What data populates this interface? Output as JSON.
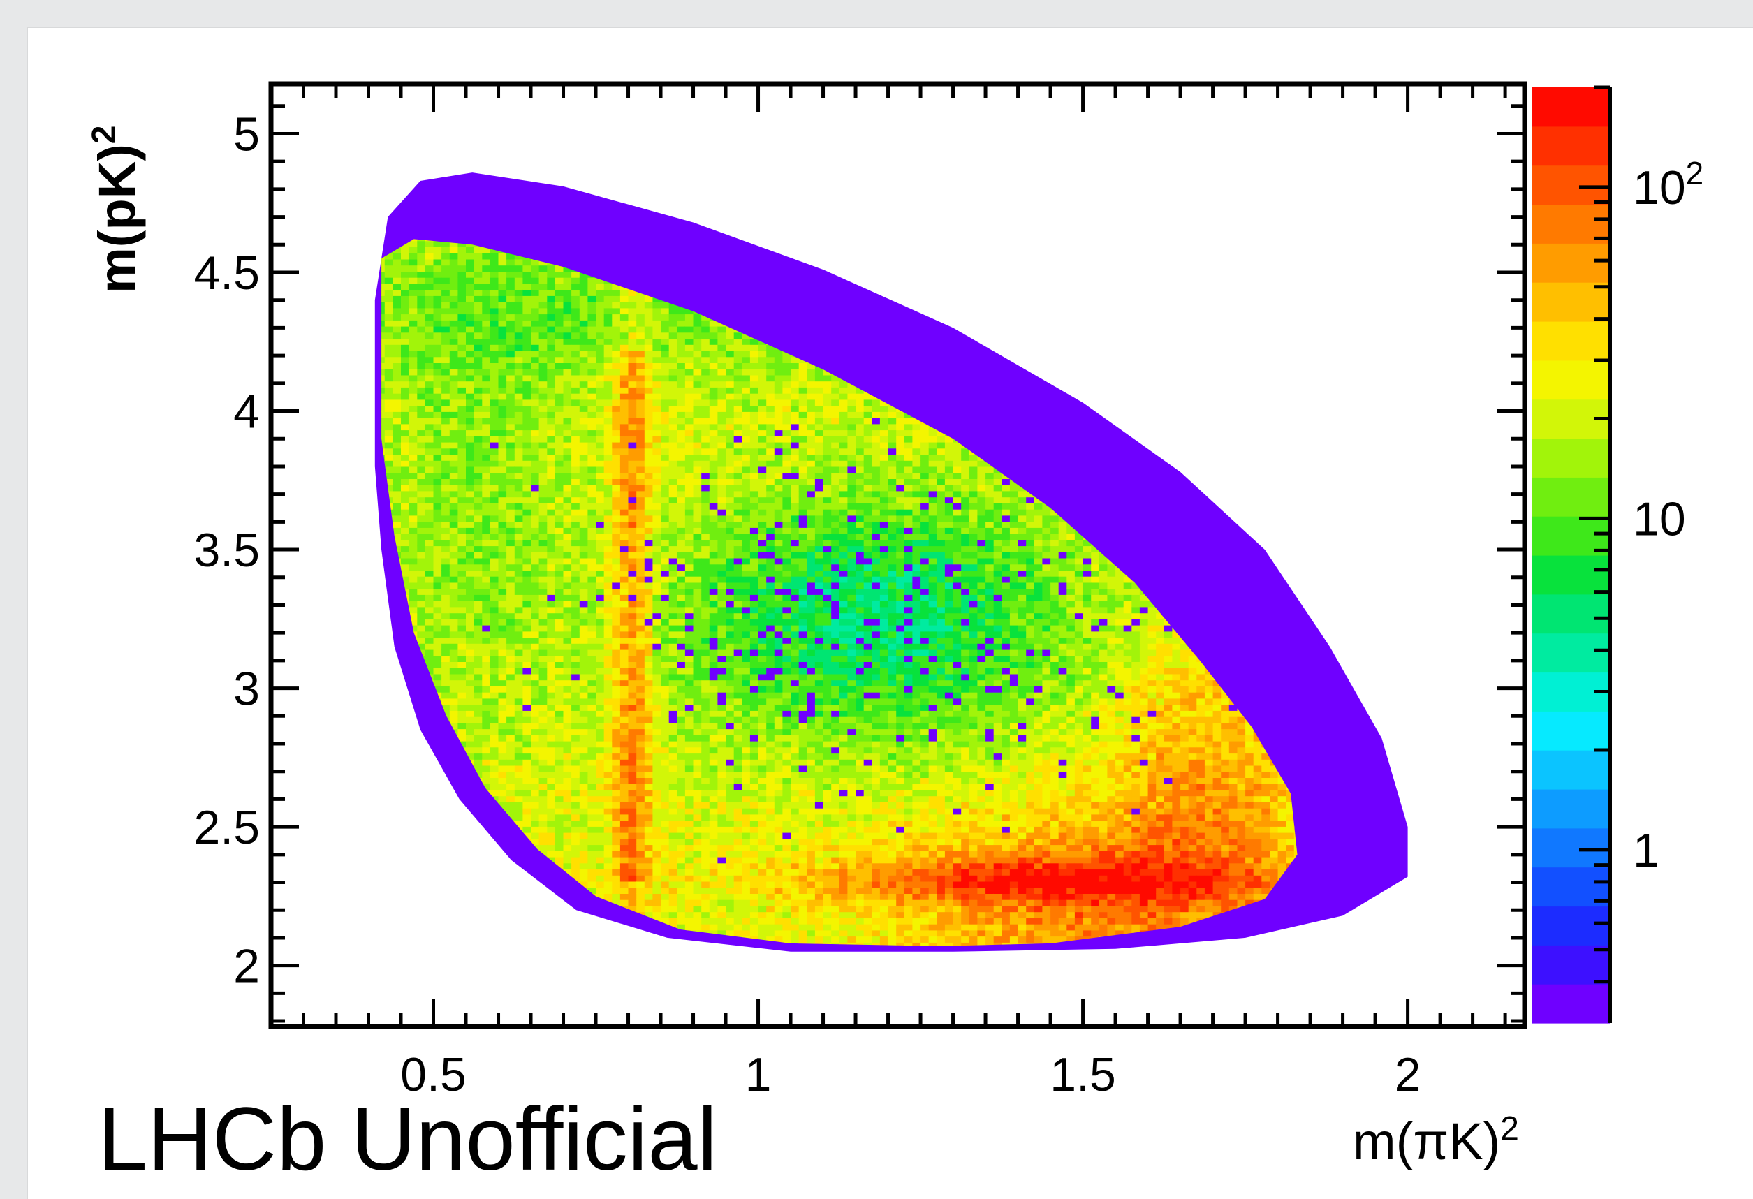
{
  "chart_data": {
    "type": "heatmap",
    "title": "",
    "xlabel": "m(πK)",
    "xlabel_sup": "2",
    "ylabel": "m(pK)",
    "ylabel_sup": "2",
    "xlim": [
      0.25,
      2.18
    ],
    "ylim": [
      1.78,
      5.18
    ],
    "x_ticks": [
      {
        "value": 0.5,
        "label": "0.5"
      },
      {
        "value": 1,
        "label": "1"
      },
      {
        "value": 1.5,
        "label": "1.5"
      },
      {
        "value": 2,
        "label": "2"
      }
    ],
    "y_ticks": [
      {
        "value": 2,
        "label": "2"
      },
      {
        "value": 2.5,
        "label": "2.5"
      },
      {
        "value": 3,
        "label": "3"
      },
      {
        "value": 3.5,
        "label": "3.5"
      },
      {
        "value": 4,
        "label": "4"
      },
      {
        "value": 4.5,
        "label": "4.5"
      },
      {
        "value": 5,
        "label": "5"
      }
    ],
    "colorbar": {
      "scale": "log",
      "range": [
        0.3,
        200
      ],
      "ticks": [
        {
          "value": 1,
          "label": "1"
        },
        {
          "value": 10,
          "label": "10"
        },
        {
          "value": 100,
          "label": "10",
          "sup": "2"
        }
      ],
      "palette": [
        "#6f00ff",
        "#3d10ff",
        "#1c2cff",
        "#1250ff",
        "#1078ff",
        "#0d9cff",
        "#0bc4ff",
        "#06eaff",
        "#00f0d4",
        "#00eba0",
        "#00e572",
        "#08e23c",
        "#3ee81a",
        "#70ee10",
        "#a2f40a",
        "#d2f608",
        "#f4f500",
        "#ffe000",
        "#ffbf00",
        "#ff9c00",
        "#ff7a00",
        "#ff5400",
        "#ff3000",
        "#ff0a00"
      ]
    },
    "regions": {
      "outer_band_color": "#6f00ff",
      "features": [
        {
          "description_value": "vertical band",
          "x": 0.8,
          "y_range": [
            2.3,
            4.2
          ]
        },
        {
          "description_value": "horizontal band",
          "y": 2.3,
          "x_range": [
            1.0,
            1.75
          ]
        }
      ]
    },
    "annotation": "LHCb Unofficial"
  }
}
